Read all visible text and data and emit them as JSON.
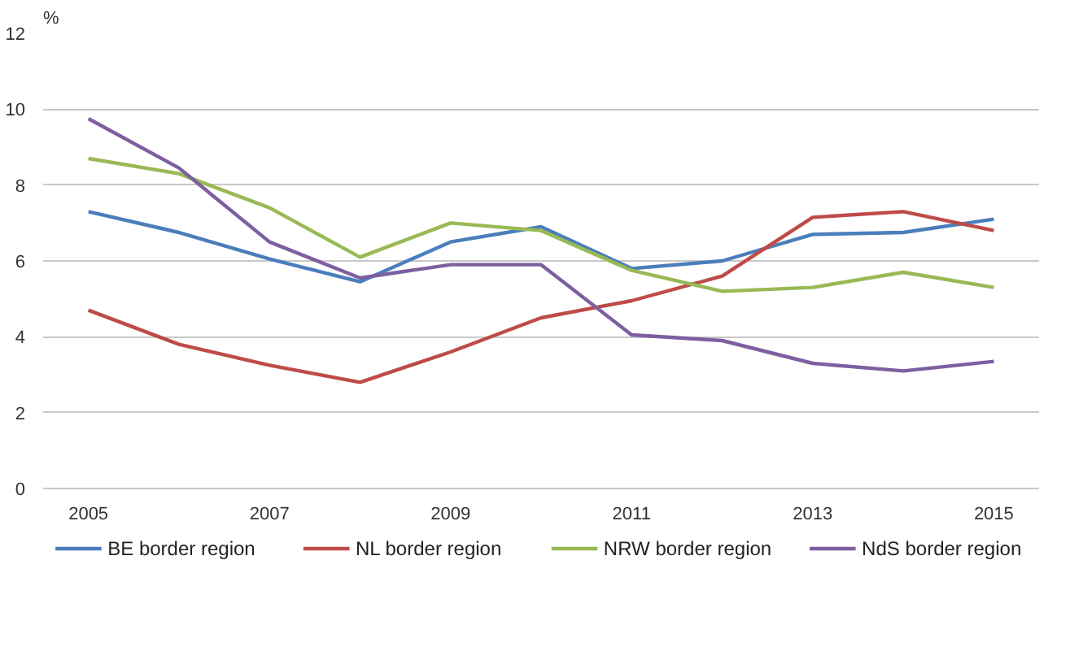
{
  "chart_data": {
    "type": "line",
    "ylabel": "%",
    "x": [
      2005,
      2006,
      2007,
      2008,
      2009,
      2010,
      2011,
      2012,
      2013,
      2014,
      2015
    ],
    "xlim": [
      2004.5,
      2015.5
    ],
    "xticks": [
      2005,
      2007,
      2009,
      2011,
      2013,
      2015
    ],
    "ylim": [
      0,
      12
    ],
    "yticks": [
      0,
      2,
      4,
      6,
      8,
      10,
      12
    ],
    "grid": "y",
    "legend": "bottom",
    "marker": "none",
    "line_style": "solid",
    "series": [
      {
        "name": "BE border region",
        "color": "#4a7ebb",
        "values": [
          7.3,
          6.75,
          6.05,
          5.45,
          6.5,
          6.9,
          5.8,
          6.0,
          6.7,
          6.75,
          7.1
        ]
      },
      {
        "name": "NL border region",
        "color": "#be4b48",
        "values": [
          4.7,
          3.8,
          3.25,
          2.8,
          3.6,
          4.5,
          4.95,
          5.6,
          7.15,
          7.3,
          6.8
        ]
      },
      {
        "name": "NRW border region",
        "color": "#98b954",
        "values": [
          8.7,
          8.3,
          7.4,
          6.1,
          7.0,
          6.8,
          5.75,
          5.2,
          5.3,
          5.7,
          5.3
        ]
      },
      {
        "name": "NdS border region",
        "color": "#7d5fa0",
        "values": [
          9.75,
          8.45,
          6.5,
          5.55,
          5.9,
          5.9,
          4.05,
          3.9,
          3.3,
          3.1,
          3.35
        ]
      }
    ]
  }
}
